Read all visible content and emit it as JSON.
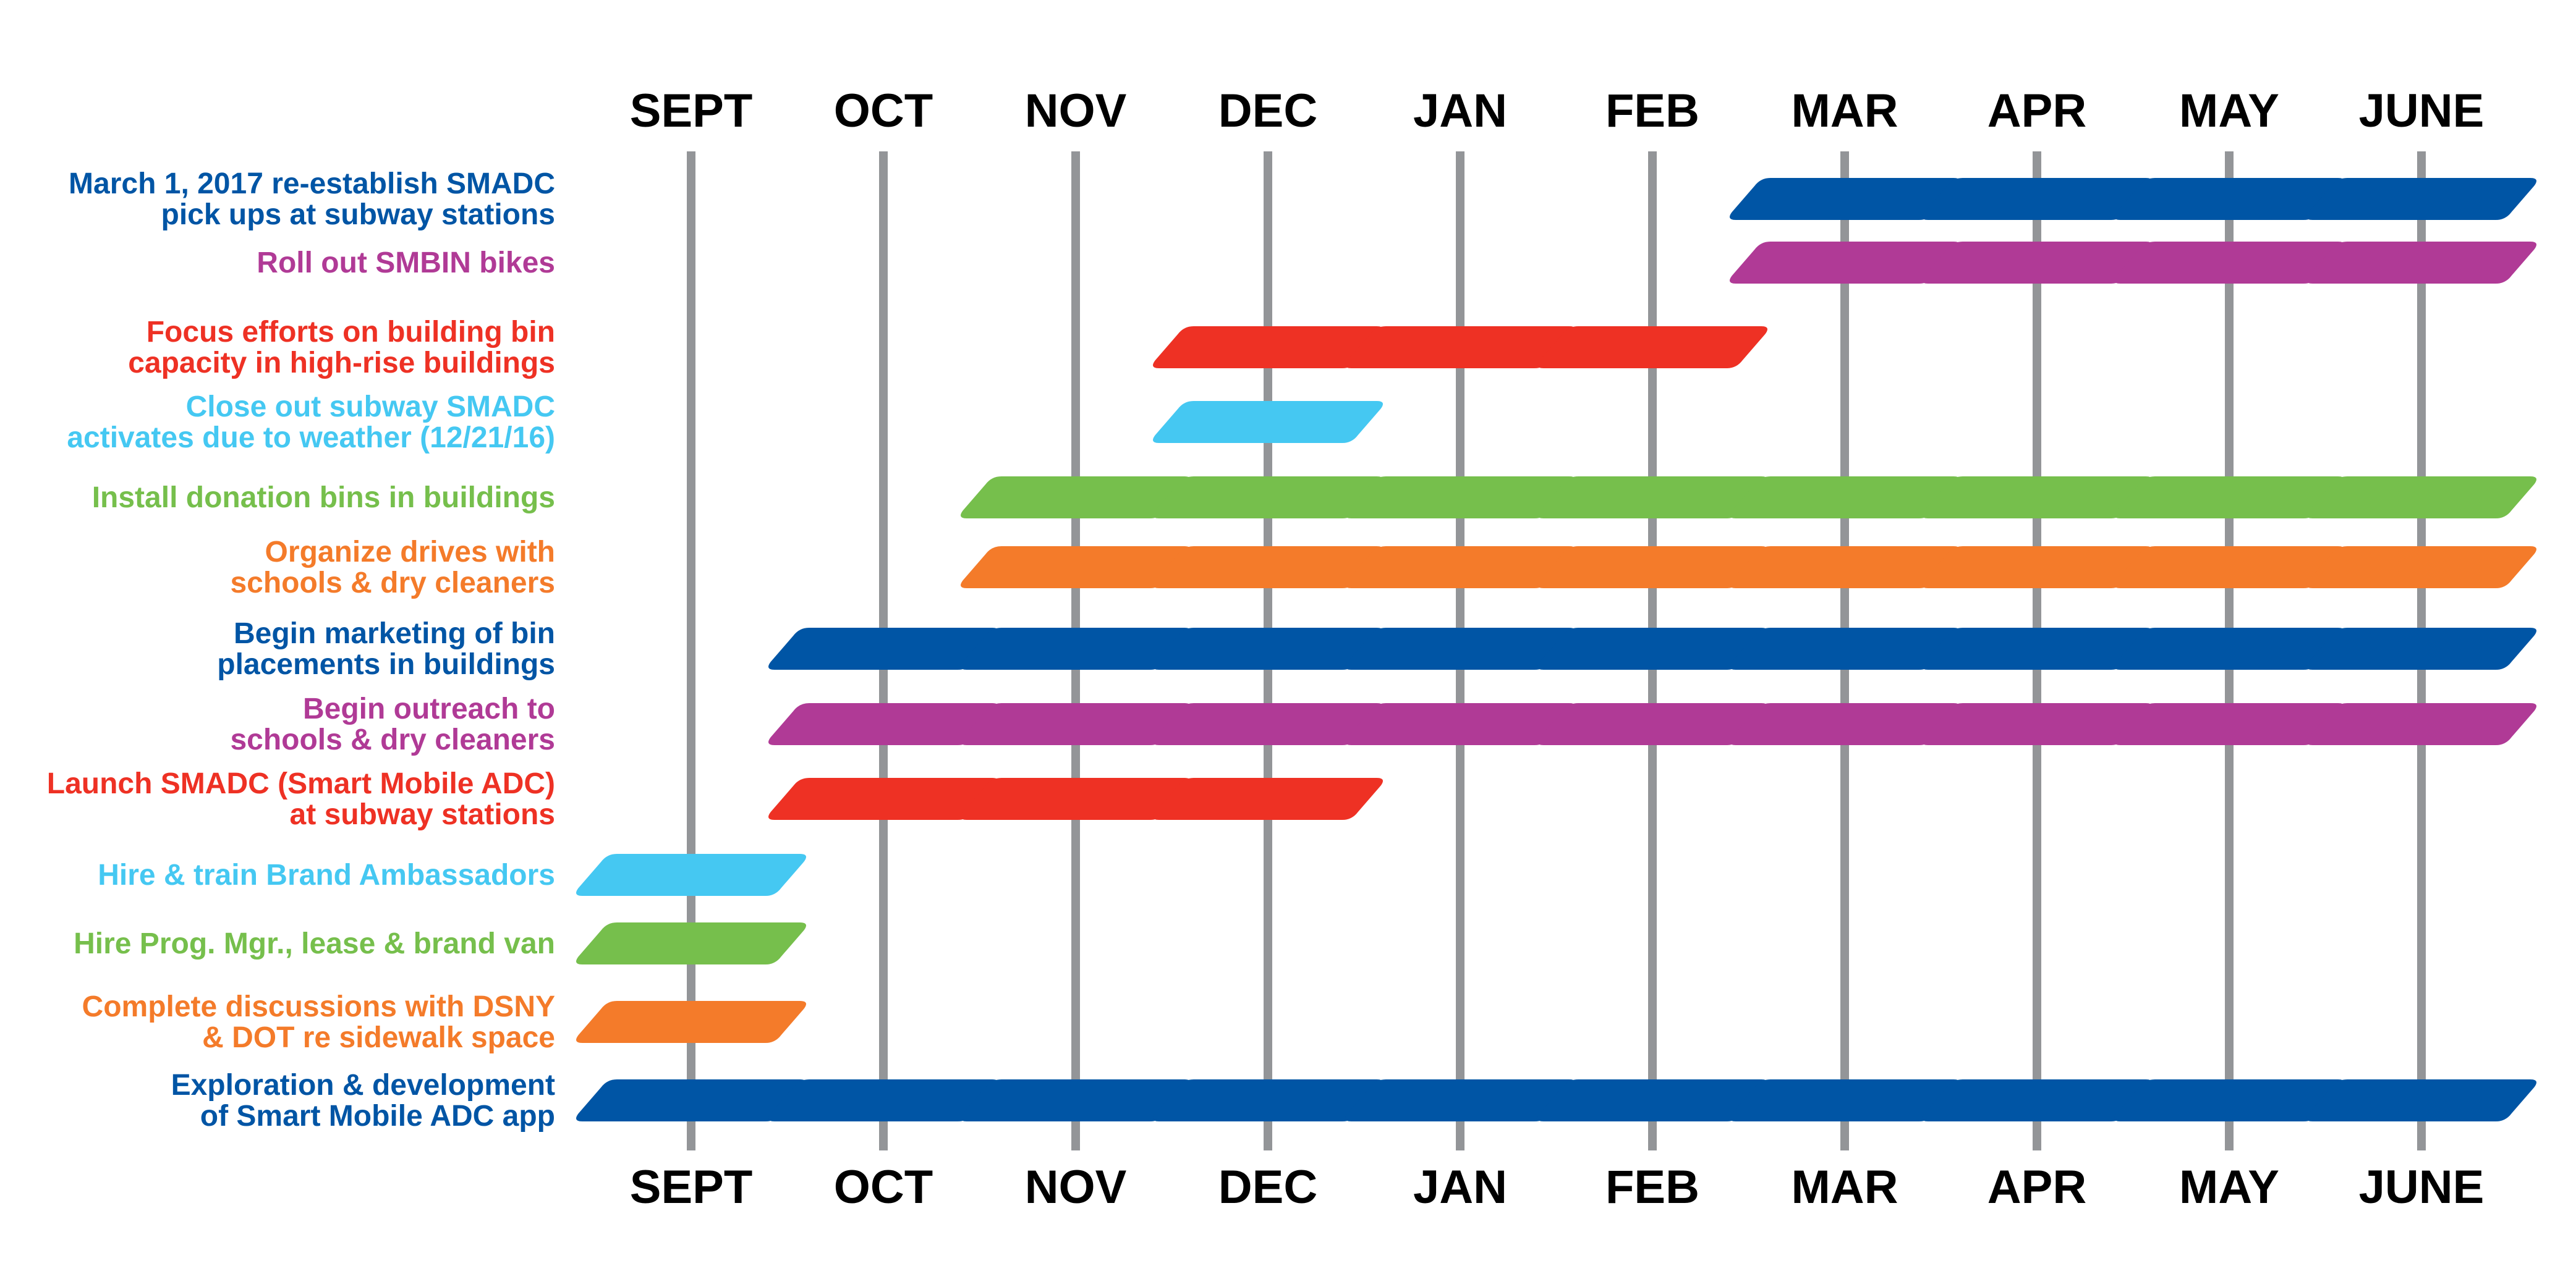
{
  "chart_data": {
    "type": "gantt",
    "months": [
      "SEPT",
      "OCT",
      "NOV",
      "DEC",
      "JAN",
      "FEB",
      "MAR",
      "APR",
      "MAY",
      "JUNE"
    ],
    "colors": {
      "blue": "#0055A5",
      "purple": "#B03A96",
      "red": "#EE3124",
      "cyan": "#45C8F2",
      "green": "#76BF4C",
      "orange": "#F47B2A",
      "grid": "#939598"
    },
    "tasks": [
      {
        "lines": [
          "March 1, 2017 re-establish SMADC",
          "pick ups at subway stations"
        ],
        "color": "blue",
        "start": 6,
        "end": 9
      },
      {
        "lines": [
          "Roll out SMBIN bikes"
        ],
        "color": "purple",
        "start": 6,
        "end": 9
      },
      {
        "lines": [
          "Focus efforts on building bin",
          "capacity in high-rise buildings"
        ],
        "color": "red",
        "start": 3,
        "end": 5
      },
      {
        "lines": [
          "Close out subway SMADC",
          "activates due to weather (12/21/16)"
        ],
        "color": "cyan",
        "start": 3,
        "end": 3
      },
      {
        "lines": [
          "Install donation bins in buildings"
        ],
        "color": "green",
        "start": 2,
        "end": 9
      },
      {
        "lines": [
          "Organize drives with",
          "schools & dry cleaners"
        ],
        "color": "orange",
        "start": 2,
        "end": 9
      },
      {
        "lines": [
          "Begin marketing of bin",
          "placements in buildings"
        ],
        "color": "blue",
        "start": 1,
        "end": 9
      },
      {
        "lines": [
          "Begin outreach to",
          "schools & dry cleaners"
        ],
        "color": "purple",
        "start": 1,
        "end": 9
      },
      {
        "lines": [
          "Launch SMADC (Smart Mobile ADC)",
          "at subway stations"
        ],
        "color": "red",
        "start": 1,
        "end": 3
      },
      {
        "lines": [
          "Hire & train Brand Ambassadors"
        ],
        "color": "cyan",
        "start": 0,
        "end": 0
      },
      {
        "lines": [
          "Hire Prog. Mgr., lease & brand van"
        ],
        "color": "green",
        "start": 0,
        "end": 0
      },
      {
        "lines": [
          "Complete discussions with DSNY",
          "& DOT re sidewalk space"
        ],
        "color": "orange",
        "start": 0,
        "end": 0
      },
      {
        "lines": [
          "Exploration & development",
          "of Smart Mobile ADC app"
        ],
        "color": "blue",
        "start": 0,
        "end": 9
      }
    ]
  }
}
